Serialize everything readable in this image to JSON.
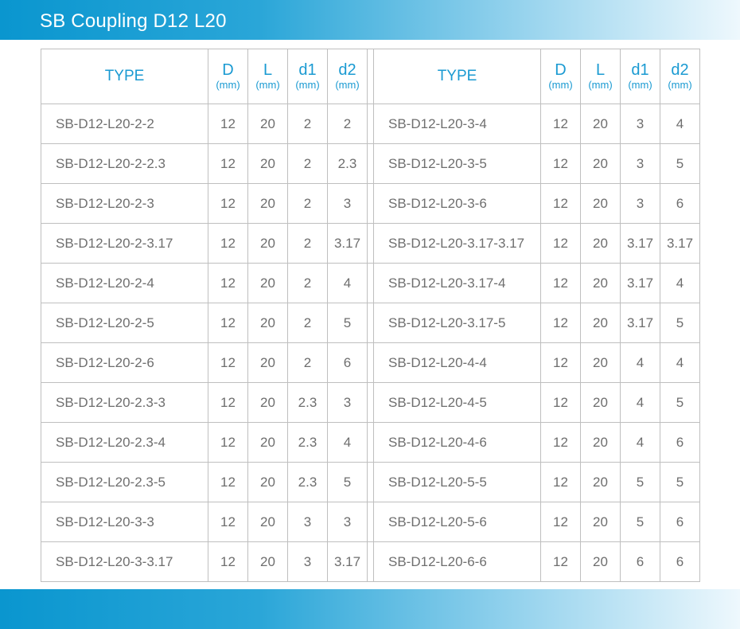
{
  "title": "SB Coupling D12 L20",
  "headers": {
    "type": "TYPE",
    "D": "D",
    "L": "L",
    "d1": "d1",
    "d2": "d2",
    "unit": "(mm)"
  },
  "left_rows": [
    {
      "type": "SB-D12-L20-2-2",
      "D": "12",
      "L": "20",
      "d1": "2",
      "d2": "2"
    },
    {
      "type": "SB-D12-L20-2-2.3",
      "D": "12",
      "L": "20",
      "d1": "2",
      "d2": "2.3"
    },
    {
      "type": "SB-D12-L20-2-3",
      "D": "12",
      "L": "20",
      "d1": "2",
      "d2": "3"
    },
    {
      "type": "SB-D12-L20-2-3.17",
      "D": "12",
      "L": "20",
      "d1": "2",
      "d2": "3.17"
    },
    {
      "type": "SB-D12-L20-2-4",
      "D": "12",
      "L": "20",
      "d1": "2",
      "d2": "4"
    },
    {
      "type": "SB-D12-L20-2-5",
      "D": "12",
      "L": "20",
      "d1": "2",
      "d2": "5"
    },
    {
      "type": "SB-D12-L20-2-6",
      "D": "12",
      "L": "20",
      "d1": "2",
      "d2": "6"
    },
    {
      "type": "SB-D12-L20-2.3-3",
      "D": "12",
      "L": "20",
      "d1": "2.3",
      "d2": "3"
    },
    {
      "type": "SB-D12-L20-2.3-4",
      "D": "12",
      "L": "20",
      "d1": "2.3",
      "d2": "4"
    },
    {
      "type": "SB-D12-L20-2.3-5",
      "D": "12",
      "L": "20",
      "d1": "2.3",
      "d2": "5"
    },
    {
      "type": "SB-D12-L20-3-3",
      "D": "12",
      "L": "20",
      "d1": "3",
      "d2": "3"
    },
    {
      "type": "SB-D12-L20-3-3.17",
      "D": "12",
      "L": "20",
      "d1": "3",
      "d2": "3.17"
    }
  ],
  "right_rows": [
    {
      "type": "SB-D12-L20-3-4",
      "D": "12",
      "L": "20",
      "d1": "3",
      "d2": "4"
    },
    {
      "type": "SB-D12-L20-3-5",
      "D": "12",
      "L": "20",
      "d1": "3",
      "d2": "5"
    },
    {
      "type": "SB-D12-L20-3-6",
      "D": "12",
      "L": "20",
      "d1": "3",
      "d2": "6"
    },
    {
      "type": "SB-D12-L20-3.17-3.17",
      "D": "12",
      "L": "20",
      "d1": "3.17",
      "d2": "3.17"
    },
    {
      "type": "SB-D12-L20-3.17-4",
      "D": "12",
      "L": "20",
      "d1": "3.17",
      "d2": "4"
    },
    {
      "type": "SB-D12-L20-3.17-5",
      "D": "12",
      "L": "20",
      "d1": "3.17",
      "d2": "5"
    },
    {
      "type": "SB-D12-L20-4-4",
      "D": "12",
      "L": "20",
      "d1": "4",
      "d2": "4"
    },
    {
      "type": "SB-D12-L20-4-5",
      "D": "12",
      "L": "20",
      "d1": "4",
      "d2": "5"
    },
    {
      "type": "SB-D12-L20-4-6",
      "D": "12",
      "L": "20",
      "d1": "4",
      "d2": "6"
    },
    {
      "type": "SB-D12-L20-5-5",
      "D": "12",
      "L": "20",
      "d1": "5",
      "d2": "5"
    },
    {
      "type": "SB-D12-L20-5-6",
      "D": "12",
      "L": "20",
      "d1": "5",
      "d2": "6"
    },
    {
      "type": "SB-D12-L20-6-6",
      "D": "12",
      "L": "20",
      "d1": "6",
      "d2": "6"
    }
  ]
}
